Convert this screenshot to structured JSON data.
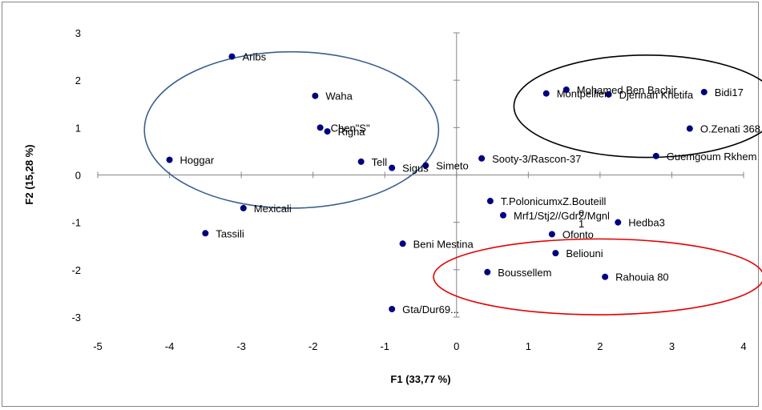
{
  "chart_data": {
    "type": "scatter",
    "xlabel": "F1 (33,77 %)",
    "ylabel": "F2 (15,28 %)",
    "xlim": [
      -5,
      4
    ],
    "ylim": [
      -3,
      3
    ],
    "x_ticks": [
      "-5",
      "-4",
      "-3",
      "-2",
      "-1",
      "0",
      "1",
      "2",
      "3",
      "4"
    ],
    "y_ticks": [
      "3",
      "2",
      "1",
      "0",
      "-1",
      "-2",
      "-3"
    ],
    "points": [
      {
        "label": "Aribs",
        "x": -3.13,
        "y": 2.5
      },
      {
        "label": "Waha",
        "x": -1.97,
        "y": 1.67
      },
      {
        "label": "Chen\"S\"",
        "x": -1.9,
        "y": 1.0
      },
      {
        "label": "Righa",
        "x": -1.8,
        "y": 0.92
      },
      {
        "label": "Hoggar",
        "x": -4.0,
        "y": 0.32
      },
      {
        "label": "Tell",
        "x": -1.33,
        "y": 0.28
      },
      {
        "label": "Sigus",
        "x": -0.9,
        "y": 0.15
      },
      {
        "label": "Simeto",
        "x": -0.43,
        "y": 0.2
      },
      {
        "label": "Sooty-3/Rascon-37",
        "x": 0.35,
        "y": 0.35
      },
      {
        "label": "Mexicali",
        "x": -2.97,
        "y": -0.7
      },
      {
        "label": "Tassili",
        "x": -3.5,
        "y": -1.23
      },
      {
        "label": "Beni Mestina",
        "x": -0.75,
        "y": -1.45
      },
      {
        "label": "Gta/Dur69...",
        "x": -0.9,
        "y": -2.83
      },
      {
        "label": "T.PolonicumxZ.Bouteill",
        "x": 0.47,
        "y": -0.55
      },
      {
        "label": "Mrf1/Stj2//Gdr2/Mgnl",
        "x": 0.65,
        "y": -0.85
      },
      {
        "label": "Hedba3",
        "x": 2.25,
        "y": -1.0
      },
      {
        "label": "Ofonto",
        "x": 1.33,
        "y": -1.25
      },
      {
        "label": "Beliouni",
        "x": 1.38,
        "y": -1.65
      },
      {
        "label": "Boussellem",
        "x": 0.43,
        "y": -2.05
      },
      {
        "label": "Rahouia 80",
        "x": 2.07,
        "y": -2.15
      },
      {
        "label": "Montpellier",
        "x": 1.25,
        "y": 1.72
      },
      {
        "label": "Mohamed Ben Bachir",
        "x": 1.53,
        "y": 1.8
      },
      {
        "label": "Djennah Khetifa",
        "x": 2.12,
        "y": 1.7
      },
      {
        "label": "Bidi17",
        "x": 3.45,
        "y": 1.75
      },
      {
        "label": "O.Zenati 368",
        "x": 3.25,
        "y": 0.98
      },
      {
        "label": "Guemgoum Rkhem",
        "x": 2.78,
        "y": 0.4
      }
    ],
    "annotations": [
      {
        "text": "1",
        "x": 1.7,
        "y": -1.02
      },
      {
        "text": "e",
        "x": 1.7,
        "y": -0.78
      }
    ],
    "point_color": "#000080",
    "ellipses": [
      {
        "cx": -2.3,
        "cy": 0.95,
        "rx": 2.05,
        "ry": 1.65,
        "color": "#3a5f8f"
      },
      {
        "cx": 2.65,
        "cy": 1.45,
        "rx": 1.85,
        "ry": 1.08,
        "color": "#000000"
      },
      {
        "cx": 1.98,
        "cy": -2.15,
        "rx": 2.3,
        "ry": 0.8,
        "color": "#e30000"
      }
    ],
    "grid": false
  }
}
